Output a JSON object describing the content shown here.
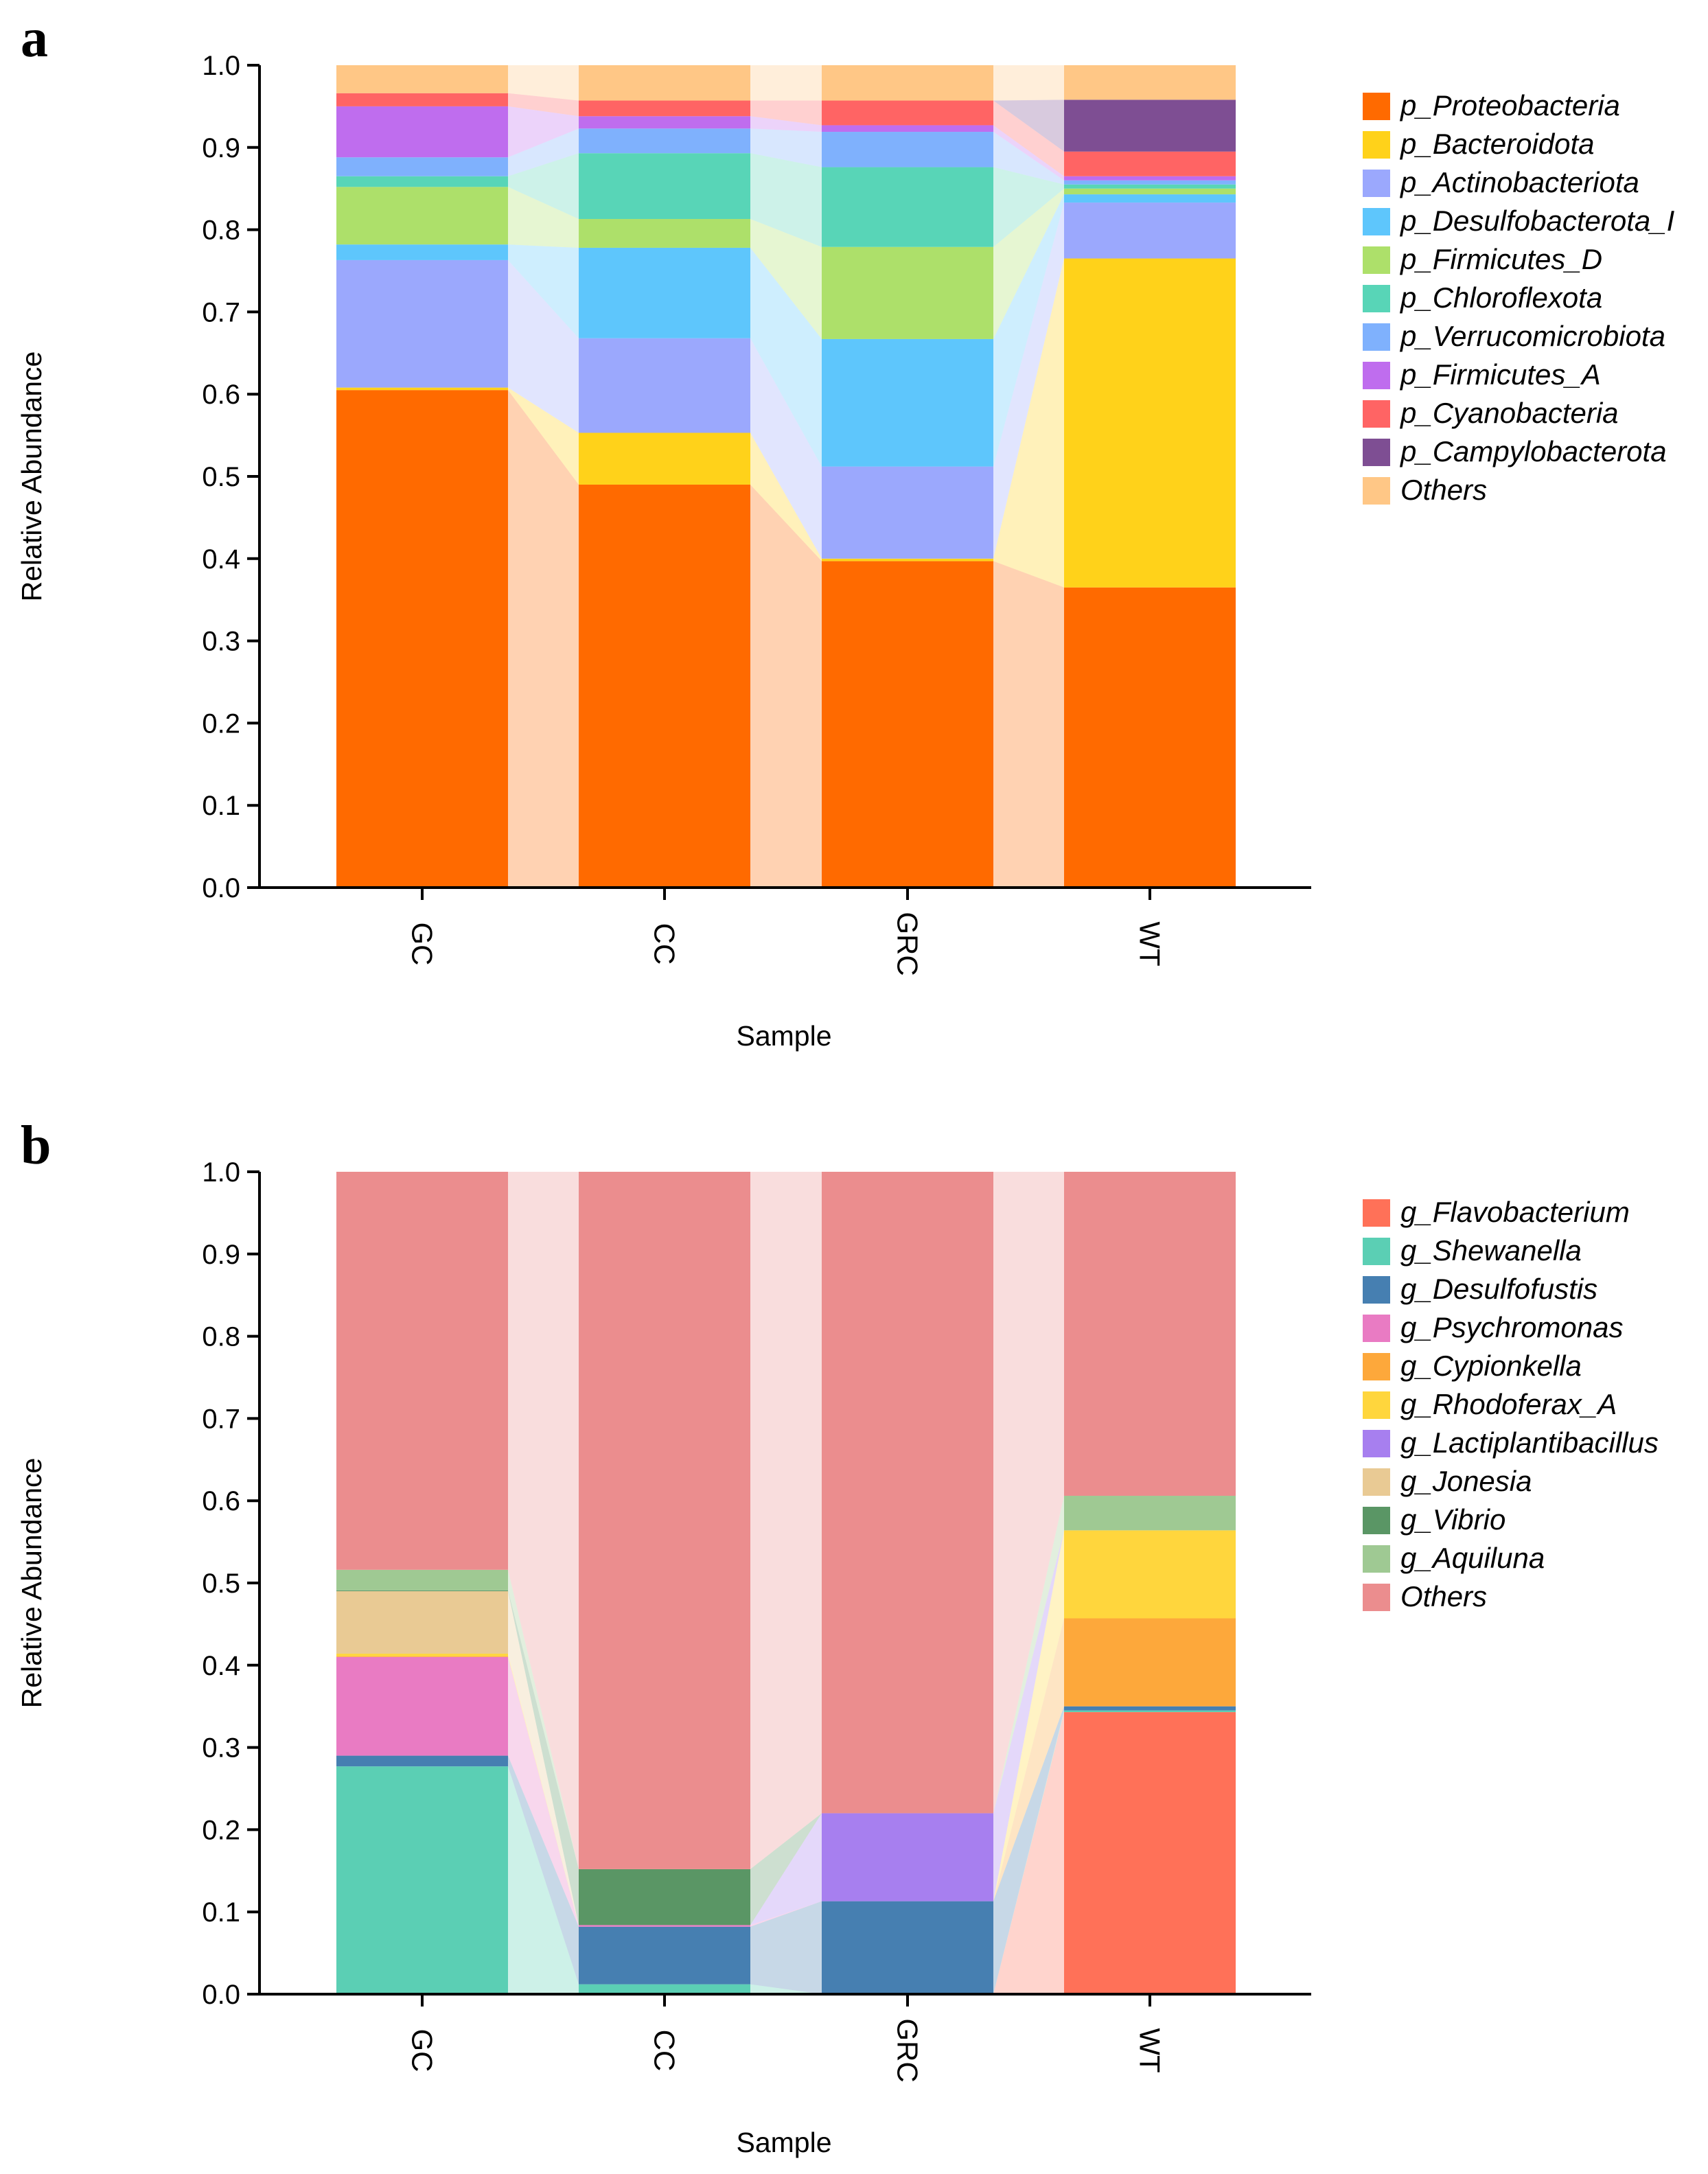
{
  "chart_data": [
    {
      "panel_label": "a",
      "type": "stacked-bar",
      "xlabel": "Sample",
      "ylabel": "Relative Abundance",
      "ylim": [
        0,
        1.0
      ],
      "yticks": [
        "0.0",
        "0.1",
        "0.2",
        "0.3",
        "0.4",
        "0.5",
        "0.6",
        "0.7",
        "0.8",
        "0.9",
        "1.0"
      ],
      "categories": [
        "GC",
        "CC",
        "GRC",
        "WT"
      ],
      "legend_position": "right",
      "series": [
        {
          "name": "p_Proteobacteria",
          "color": "#FF6A00",
          "values": [
            0.605,
            0.49,
            0.397,
            0.365
          ]
        },
        {
          "name": "p_Bacteroidota",
          "color": "#FFD21A",
          "values": [
            0.003,
            0.063,
            0.003,
            0.4
          ]
        },
        {
          "name": "p_Actinobacteriota",
          "color": "#9BA8FD",
          "values": [
            0.155,
            0.115,
            0.112,
            0.068
          ]
        },
        {
          "name": "p_Desulfobacterota_I",
          "color": "#5EC6FC",
          "values": [
            0.019,
            0.11,
            0.155,
            0.01
          ]
        },
        {
          "name": "p_Firmicutes_D",
          "color": "#ADE06A",
          "values": [
            0.07,
            0.035,
            0.112,
            0.007
          ]
        },
        {
          "name": "p_Chloroflexota",
          "color": "#58D5B7",
          "values": [
            0.013,
            0.08,
            0.097,
            0.005
          ]
        },
        {
          "name": "p_Verrucomicrobiota",
          "color": "#7FB1FD",
          "values": [
            0.023,
            0.03,
            0.043,
            0.005
          ]
        },
        {
          "name": "p_Firmicutes_A",
          "color": "#BF6DEE",
          "values": [
            0.062,
            0.015,
            0.008,
            0.005
          ]
        },
        {
          "name": "p_Cyanobacteria",
          "color": "#FF6464",
          "values": [
            0.016,
            0.019,
            0.03,
            0.03
          ]
        },
        {
          "name": "p_Campylobacterota",
          "color": "#7E4E93",
          "values": [
            0.0,
            0.0,
            0.0,
            0.063
          ]
        },
        {
          "name": "Others",
          "color": "#FFC786",
          "values": [
            0.034,
            0.043,
            0.043,
            0.042
          ]
        }
      ]
    },
    {
      "panel_label": "b",
      "type": "stacked-bar",
      "xlabel": "Sample",
      "ylabel": "Relative Abundance",
      "ylim": [
        0,
        1.0
      ],
      "yticks": [
        "0.0",
        "0.1",
        "0.2",
        "0.3",
        "0.4",
        "0.5",
        "0.6",
        "0.7",
        "0.8",
        "0.9",
        "1.0"
      ],
      "categories": [
        "GC",
        "CC",
        "GRC",
        "WT"
      ],
      "legend_position": "right",
      "series": [
        {
          "name": "g_Flavobacterium",
          "color": "#FF7158",
          "values": [
            0.0,
            0.0,
            0.0,
            0.343
          ]
        },
        {
          "name": "g_Shewanella",
          "color": "#5BCFB4",
          "values": [
            0.277,
            0.012,
            0.0,
            0.002
          ]
        },
        {
          "name": "g_Desulfofustis",
          "color": "#467FB1",
          "values": [
            0.013,
            0.07,
            0.113,
            0.005
          ]
        },
        {
          "name": "g_Psychromonas",
          "color": "#E97BC3",
          "values": [
            0.12,
            0.002,
            0.0,
            0.0
          ]
        },
        {
          "name": "g_Cypionkella",
          "color": "#FDA83B",
          "values": [
            0.001,
            0.0,
            0.0,
            0.107
          ]
        },
        {
          "name": "g_Rhodoferax_A",
          "color": "#FFD63D",
          "values": [
            0.003,
            0.0,
            0.0,
            0.107
          ]
        },
        {
          "name": "g_Lactiplantibacillus",
          "color": "#A77FEF",
          "values": [
            0.0,
            0.0,
            0.107,
            0.0
          ]
        },
        {
          "name": "g_Jonesia",
          "color": "#E9CA94",
          "values": [
            0.076,
            0.0,
            0.0,
            0.0
          ]
        },
        {
          "name": "g_Vibrio",
          "color": "#5A9665",
          "values": [
            0.001,
            0.068,
            0.0,
            0.0
          ]
        },
        {
          "name": "g_Aquiluna",
          "color": "#9FC993",
          "values": [
            0.025,
            0.0,
            0.0,
            0.042
          ]
        },
        {
          "name": "Others",
          "color": "#EB8D8E",
          "values": [
            0.484,
            0.848,
            0.78,
            0.394
          ]
        }
      ]
    }
  ]
}
